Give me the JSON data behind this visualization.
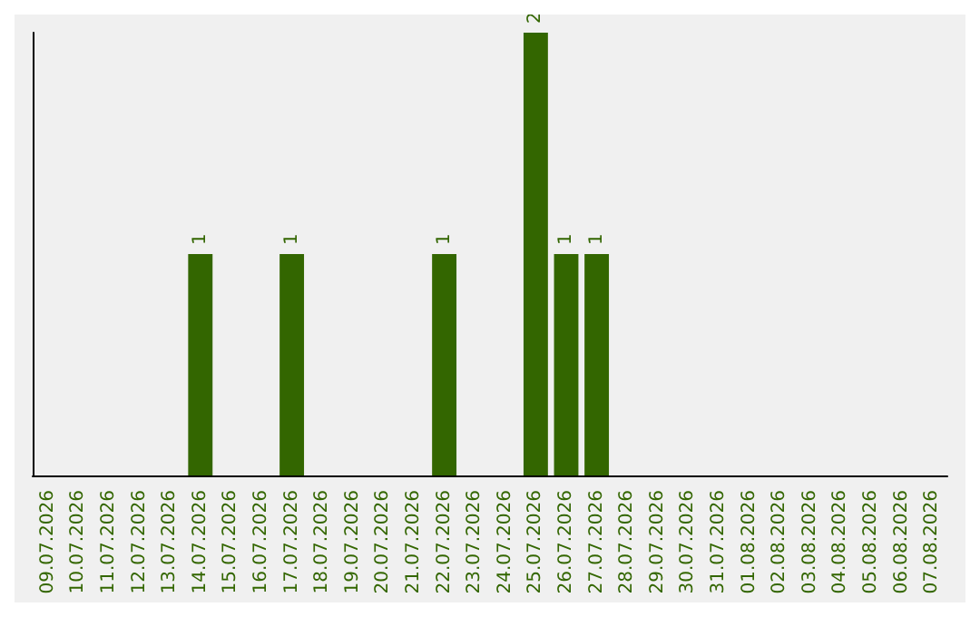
{
  "chart_data": {
    "type": "bar",
    "categories": [
      "09.07.2026",
      "10.07.2026",
      "11.07.2026",
      "12.07.2026",
      "13.07.2026",
      "14.07.2026",
      "15.07.2026",
      "16.07.2026",
      "17.07.2026",
      "18.07.2026",
      "19.07.2026",
      "20.07.2026",
      "21.07.2026",
      "22.07.2026",
      "23.07.2026",
      "24.07.2026",
      "25.07.2026",
      "26.07.2026",
      "27.07.2026",
      "28.07.2026",
      "29.07.2026",
      "30.07.2026",
      "31.07.2026",
      "01.08.2026",
      "02.08.2026",
      "03.08.2026",
      "04.08.2026",
      "05.08.2026",
      "06.08.2026",
      "07.08.2026"
    ],
    "values": [
      0,
      0,
      0,
      0,
      0,
      1,
      0,
      0,
      1,
      0,
      0,
      0,
      0,
      1,
      0,
      0,
      2,
      1,
      1,
      0,
      0,
      0,
      0,
      0,
      0,
      0,
      0,
      0,
      0,
      0
    ],
    "value_labels": [
      null,
      null,
      null,
      null,
      null,
      "1",
      null,
      null,
      "1",
      null,
      null,
      null,
      null,
      "1",
      null,
      null,
      "2",
      "1",
      "1",
      null,
      null,
      null,
      null,
      null,
      null,
      null,
      null,
      null,
      null,
      null
    ],
    "color": "#336600"
  }
}
